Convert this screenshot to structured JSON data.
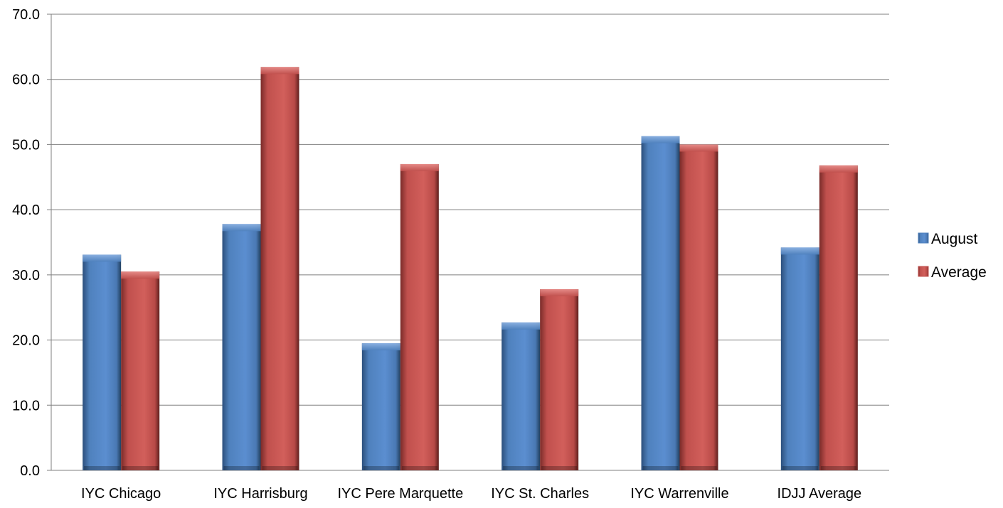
{
  "chart_data": {
    "type": "bar",
    "title": "",
    "xlabel": "",
    "ylabel": "",
    "ylim": [
      0,
      70
    ],
    "yticks": [
      "0.0",
      "10.0",
      "20.0",
      "30.0",
      "40.0",
      "50.0",
      "60.0",
      "70.0"
    ],
    "grid": true,
    "legend_position": "right",
    "categories": [
      "IYC Chicago",
      "IYC Harrisburg",
      "IYC Pere Marquette",
      "IYC St. Charles",
      "IYC Warrenville",
      "IDJJ Average"
    ],
    "series": [
      {
        "name": "August",
        "color": "#4f81bd",
        "values": [
          33.1,
          37.8,
          19.5,
          22.7,
          51.3,
          34.2
        ]
      },
      {
        "name": "Average",
        "color": "#c0504d",
        "values": [
          30.5,
          61.9,
          47.0,
          27.8,
          50.0,
          46.8
        ]
      }
    ]
  }
}
